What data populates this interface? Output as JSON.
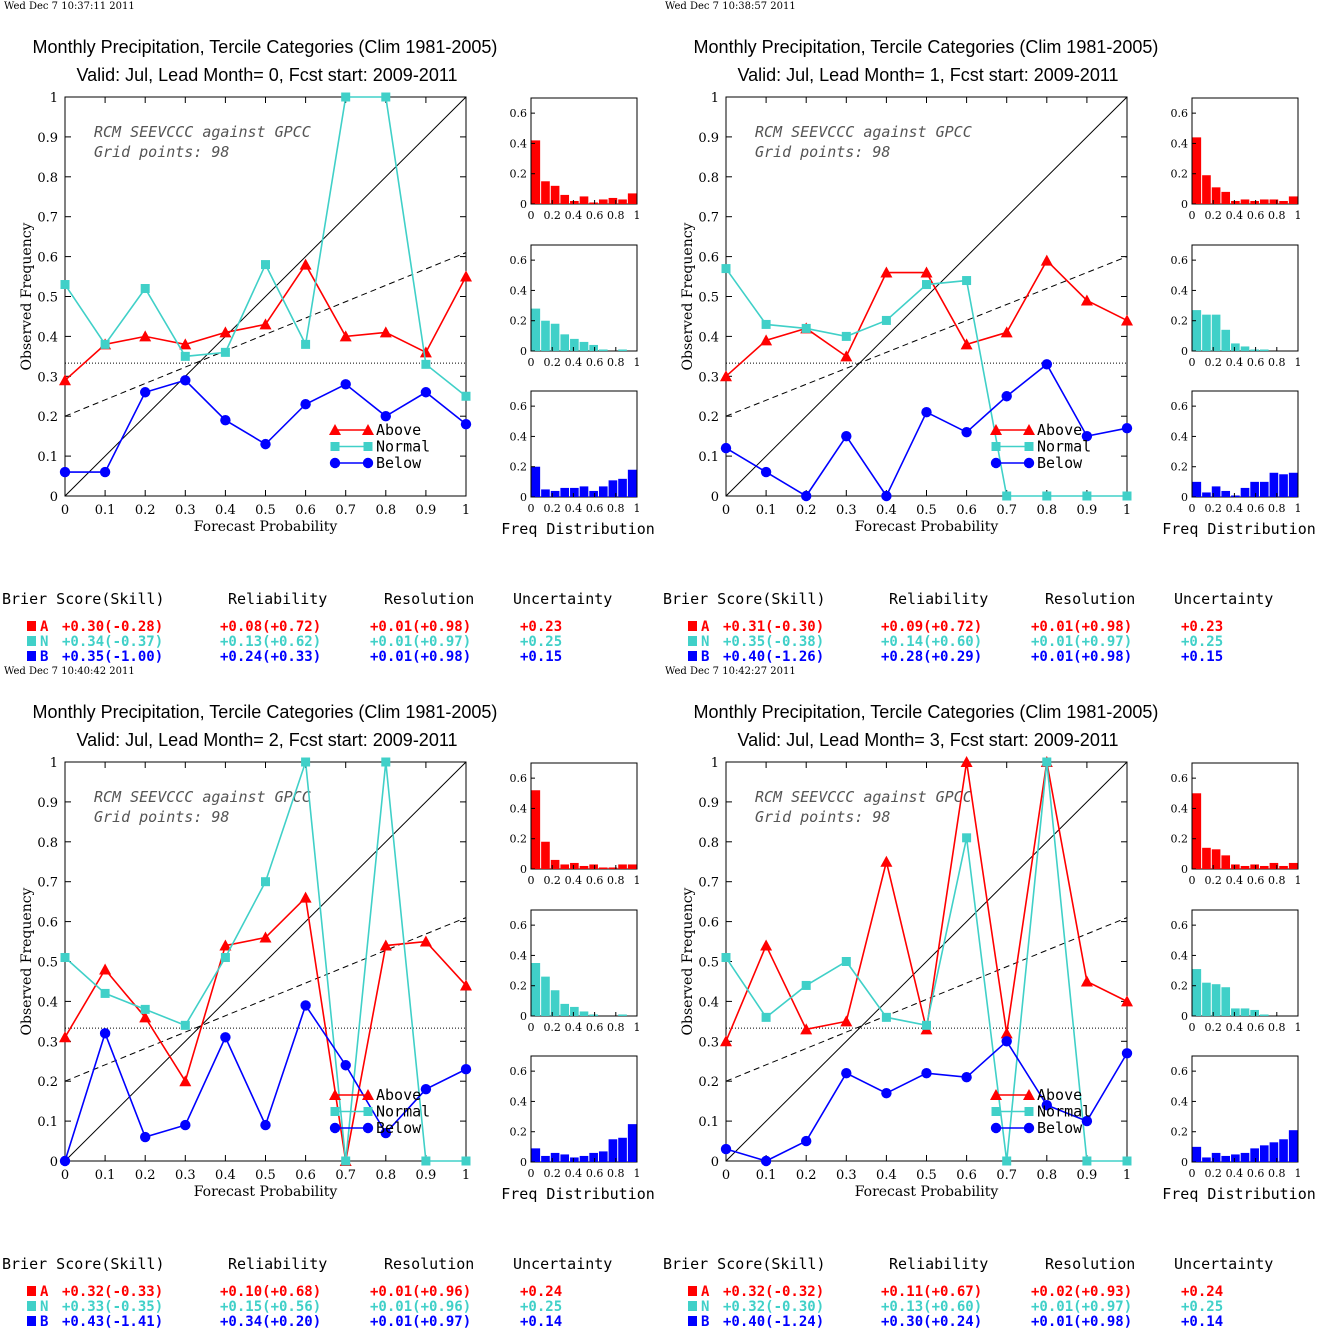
{
  "colors": {
    "A": "#ff0000",
    "N": "#40d0c8",
    "B": "#0000ff"
  },
  "common": {
    "title1": "Monthly Precipitation, Tercile Categories (Clim 1981-2005)",
    "xlabel": "Forecast Probability",
    "ylabel": "Observed Frequency",
    "hist_label": "Freq Distribution",
    "info1": "RCM SEEVCCC against GPCC",
    "info2": "Grid points:    98",
    "legend": [
      "Above",
      "Normal",
      "Below"
    ],
    "score_headers": [
      "Brier Score(Skill)",
      "Reliability",
      "Resolution",
      "Uncertainty"
    ],
    "cat_letters": [
      "A",
      "N",
      "B"
    ]
  },
  "chart_data": [
    {
      "type": "line",
      "timestamp": "Wed Dec  7 10:37:11 2011",
      "title2": "Valid: Jul, Lead Month= 0, Fcst start: 2009-2011",
      "x": [
        0,
        0.1,
        0.2,
        0.3,
        0.4,
        0.5,
        0.6,
        0.7,
        0.8,
        0.9,
        1
      ],
      "xlim": [
        0,
        1
      ],
      "ylim": [
        0,
        1
      ],
      "series": [
        {
          "name": "Above",
          "values": [
            0.29,
            0.38,
            0.4,
            0.38,
            0.41,
            0.43,
            0.58,
            0.4,
            0.41,
            0.36,
            0.55
          ]
        },
        {
          "name": "Normal",
          "values": [
            0.53,
            0.38,
            0.52,
            0.35,
            0.36,
            0.58,
            0.38,
            1.0,
            1.0,
            0.33,
            0.25
          ]
        },
        {
          "name": "Below",
          "values": [
            0.06,
            0.06,
            0.26,
            0.29,
            0.19,
            0.13,
            0.23,
            0.28,
            0.2,
            0.26,
            0.18
          ]
        }
      ],
      "noskill": [
        0.2,
        0.61
      ],
      "clim": 0.333,
      "hist": [
        [
          0.42,
          0.15,
          0.12,
          0.06,
          0.02,
          0.05,
          0.01,
          0.03,
          0.04,
          0.03,
          0.07
        ],
        [
          0.28,
          0.2,
          0.18,
          0.11,
          0.08,
          0.06,
          0.04,
          0.01,
          0.0,
          0.01,
          0.0
        ],
        [
          0.2,
          0.05,
          0.04,
          0.06,
          0.06,
          0.07,
          0.04,
          0.07,
          0.11,
          0.12,
          0.18
        ]
      ],
      "scores": [
        [
          "+0.30(-0.28)",
          "+0.08(+0.72)",
          "+0.01(+0.98)",
          "+0.23"
        ],
        [
          "+0.34(-0.37)",
          "+0.13(+0.62)",
          "+0.01(+0.97)",
          "+0.25"
        ],
        [
          "+0.35(-1.00)",
          "+0.24(+0.33)",
          "+0.01(+0.98)",
          "+0.15"
        ]
      ]
    },
    {
      "type": "line",
      "timestamp": "Wed Dec  7 10:38:57 2011",
      "title2": "Valid: Jul, Lead Month= 1, Fcst start: 2009-2011",
      "x": [
        0,
        0.1,
        0.2,
        0.3,
        0.4,
        0.5,
        0.6,
        0.7,
        0.8,
        0.9,
        1
      ],
      "xlim": [
        0,
        1
      ],
      "ylim": [
        0,
        1
      ],
      "series": [
        {
          "name": "Above",
          "values": [
            0.3,
            0.39,
            0.42,
            0.35,
            0.56,
            0.56,
            0.38,
            0.41,
            0.59,
            0.49,
            0.44
          ]
        },
        {
          "name": "Normal",
          "values": [
            0.57,
            0.43,
            0.42,
            0.4,
            0.44,
            0.53,
            0.54,
            0.0,
            0.0,
            0.0,
            0.0
          ]
        },
        {
          "name": "Below",
          "values": [
            0.12,
            0.06,
            0.0,
            0.15,
            0.0,
            0.21,
            0.16,
            0.25,
            0.33,
            0.15,
            0.17
          ]
        }
      ],
      "noskill": [
        0.2,
        0.6
      ],
      "clim": 0.333,
      "hist": [
        [
          0.44,
          0.19,
          0.11,
          0.08,
          0.02,
          0.03,
          0.02,
          0.03,
          0.03,
          0.02,
          0.05
        ],
        [
          0.27,
          0.24,
          0.24,
          0.14,
          0.05,
          0.03,
          0.01,
          0.01,
          0.0,
          0.0,
          0.0
        ],
        [
          0.1,
          0.03,
          0.07,
          0.04,
          0.01,
          0.06,
          0.1,
          0.1,
          0.16,
          0.15,
          0.16
        ]
      ],
      "scores": [
        [
          "+0.31(-0.30)",
          "+0.09(+0.72)",
          "+0.01(+0.98)",
          "+0.23"
        ],
        [
          "+0.35(-0.38)",
          "+0.14(+0.60)",
          "+0.01(+0.97)",
          "+0.25"
        ],
        [
          "+0.40(-1.26)",
          "+0.28(+0.29)",
          "+0.01(+0.98)",
          "+0.15"
        ]
      ]
    },
    {
      "type": "line",
      "timestamp": "Wed Dec  7 10:40:42 2011",
      "title2": "Valid: Jul, Lead Month= 2, Fcst start: 2009-2011",
      "x": [
        0,
        0.1,
        0.2,
        0.3,
        0.4,
        0.5,
        0.6,
        0.7,
        0.8,
        0.9,
        1
      ],
      "xlim": [
        0,
        1
      ],
      "ylim": [
        0,
        1
      ],
      "series": [
        {
          "name": "Above",
          "values": [
            0.31,
            0.48,
            0.36,
            0.2,
            0.54,
            0.56,
            0.66,
            0.0,
            0.54,
            0.55,
            0.44
          ]
        },
        {
          "name": "Normal",
          "values": [
            0.51,
            0.42,
            0.38,
            0.34,
            0.51,
            0.7,
            1.0,
            0.0,
            1.0,
            0.0,
            0.0
          ]
        },
        {
          "name": "Below",
          "values": [
            0.0,
            0.32,
            0.06,
            0.09,
            0.31,
            0.09,
            0.39,
            0.24,
            0.07,
            0.18,
            0.23
          ]
        }
      ],
      "noskill": [
        0.2,
        0.61
      ],
      "clim": 0.333,
      "hist": [
        [
          0.52,
          0.18,
          0.06,
          0.03,
          0.04,
          0.02,
          0.03,
          0.01,
          0.01,
          0.03,
          0.03
        ],
        [
          0.35,
          0.26,
          0.17,
          0.08,
          0.06,
          0.03,
          0.01,
          0.0,
          0.0,
          0.01,
          0.0
        ],
        [
          0.09,
          0.04,
          0.06,
          0.05,
          0.03,
          0.04,
          0.06,
          0.07,
          0.15,
          0.16,
          0.25
        ]
      ],
      "scores": [
        [
          "+0.32(-0.33)",
          "+0.10(+0.68)",
          "+0.01(+0.96)",
          "+0.24"
        ],
        [
          "+0.33(-0.35)",
          "+0.15(+0.56)",
          "+0.01(+0.96)",
          "+0.25"
        ],
        [
          "+0.43(-1.41)",
          "+0.34(+0.20)",
          "+0.01(+0.97)",
          "+0.14"
        ]
      ]
    },
    {
      "type": "line",
      "timestamp": "Wed Dec  7 10:42:27 2011",
      "title2": "Valid: Jul, Lead Month= 3, Fcst start: 2009-2011",
      "x": [
        0,
        0.1,
        0.2,
        0.3,
        0.4,
        0.5,
        0.6,
        0.7,
        0.8,
        0.9,
        1
      ],
      "xlim": [
        0,
        1
      ],
      "ylim": [
        0,
        1
      ],
      "series": [
        {
          "name": "Above",
          "values": [
            0.3,
            0.54,
            0.33,
            0.35,
            0.75,
            0.33,
            1.0,
            0.32,
            1.0,
            0.45,
            0.4
          ]
        },
        {
          "name": "Normal",
          "values": [
            0.51,
            0.36,
            0.44,
            0.5,
            0.36,
            0.34,
            0.81,
            0.0,
            1.0,
            0.0,
            0.0
          ]
        },
        {
          "name": "Below",
          "values": [
            0.03,
            0.0,
            0.05,
            0.22,
            0.17,
            0.22,
            0.21,
            0.3,
            0.14,
            0.1,
            0.27
          ]
        }
      ],
      "noskill": [
        0.2,
        0.61
      ],
      "clim": 0.333,
      "hist": [
        [
          0.5,
          0.14,
          0.13,
          0.09,
          0.03,
          0.02,
          0.03,
          0.02,
          0.04,
          0.02,
          0.04
        ],
        [
          0.31,
          0.22,
          0.21,
          0.19,
          0.05,
          0.05,
          0.04,
          0.01,
          0.0,
          0.0,
          0.0
        ],
        [
          0.1,
          0.03,
          0.06,
          0.04,
          0.05,
          0.06,
          0.09,
          0.11,
          0.13,
          0.15,
          0.21
        ]
      ],
      "scores": [
        [
          "+0.32(-0.32)",
          "+0.11(+0.67)",
          "+0.02(+0.93)",
          "+0.24"
        ],
        [
          "+0.32(-0.30)",
          "+0.13(+0.60)",
          "+0.01(+0.97)",
          "+0.25"
        ],
        [
          "+0.40(-1.24)",
          "+0.30(+0.24)",
          "+0.01(+0.98)",
          "+0.14"
        ]
      ]
    }
  ]
}
